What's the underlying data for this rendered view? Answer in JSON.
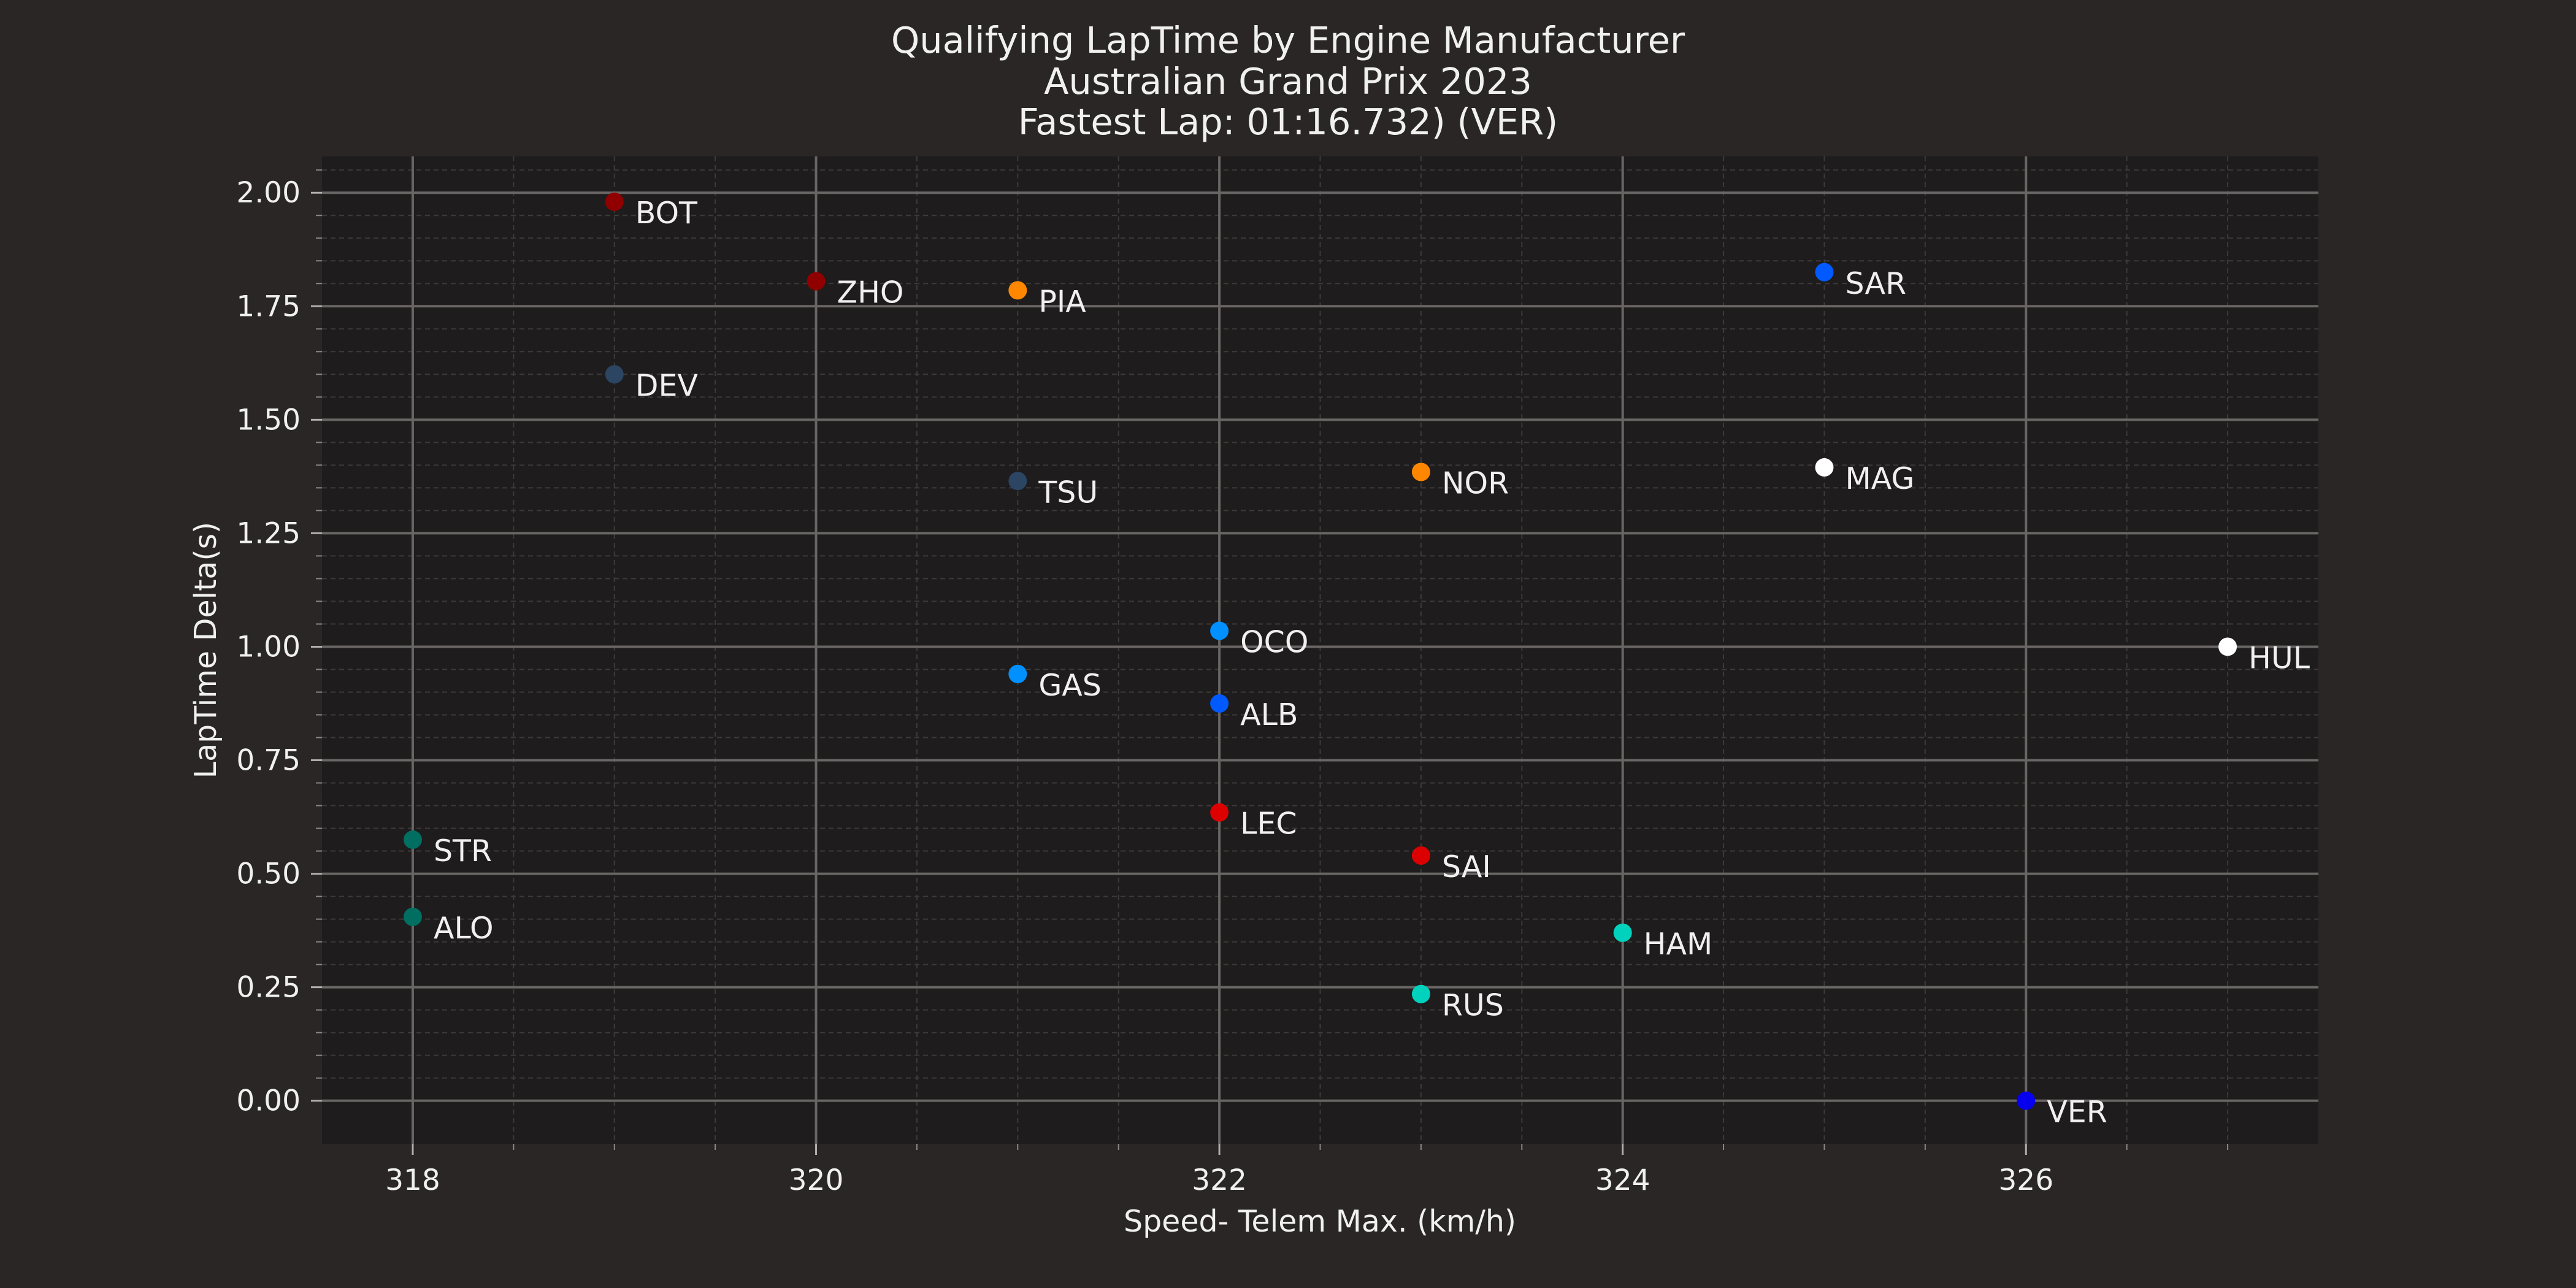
{
  "chart_data": {
    "type": "scatter",
    "title": [
      "Qualifying LapTime by Engine Manufacturer",
      "Australian Grand Prix 2023",
      "Fastest Lap: 01:16.732) (VER)"
    ],
    "xlabel": "Speed- Telem Max. (km/h)",
    "ylabel": "LapTime Delta(s)",
    "xlim": [
      317.55,
      327.45
    ],
    "ylim": [
      -0.095,
      2.08
    ],
    "xticks": [
      318,
      320,
      322,
      324,
      326
    ],
    "xtick_labels": [
      "318",
      "320",
      "322",
      "324",
      "326"
    ],
    "yticks": [
      0.0,
      0.25,
      0.5,
      0.75,
      1.0,
      1.25,
      1.5,
      1.75,
      2.0
    ],
    "ytick_labels": [
      "0.00",
      "0.25",
      "0.50",
      "0.75",
      "1.00",
      "1.25",
      "1.50",
      "1.75",
      "2.00"
    ],
    "grid": true,
    "points": [
      {
        "label": "BOT",
        "x": 319,
        "y": 1.98,
        "color": "#900000"
      },
      {
        "label": "ZHO",
        "x": 320,
        "y": 1.805,
        "color": "#900000"
      },
      {
        "label": "PIA",
        "x": 321,
        "y": 1.785,
        "color": "#ff8700"
      },
      {
        "label": "SAR",
        "x": 325,
        "y": 1.825,
        "color": "#005aff"
      },
      {
        "label": "DEV",
        "x": 319,
        "y": 1.6,
        "color": "#2b4562"
      },
      {
        "label": "TSU",
        "x": 321,
        "y": 1.365,
        "color": "#2b4562"
      },
      {
        "label": "NOR",
        "x": 323,
        "y": 1.385,
        "color": "#ff8700"
      },
      {
        "label": "MAG",
        "x": 325,
        "y": 1.395,
        "color": "#ffffff"
      },
      {
        "label": "OCO",
        "x": 322,
        "y": 1.035,
        "color": "#0090ff"
      },
      {
        "label": "HUL",
        "x": 327,
        "y": 1.0,
        "color": "#ffffff"
      },
      {
        "label": "GAS",
        "x": 321,
        "y": 0.94,
        "color": "#0090ff"
      },
      {
        "label": "ALB",
        "x": 322,
        "y": 0.875,
        "color": "#005aff"
      },
      {
        "label": "LEC",
        "x": 322,
        "y": 0.635,
        "color": "#dc0000"
      },
      {
        "label": "SAI",
        "x": 323,
        "y": 0.54,
        "color": "#dc0000"
      },
      {
        "label": "STR",
        "x": 318,
        "y": 0.575,
        "color": "#006f62"
      },
      {
        "label": "ALO",
        "x": 318,
        "y": 0.405,
        "color": "#006f62"
      },
      {
        "label": "HAM",
        "x": 324,
        "y": 0.37,
        "color": "#00d2be"
      },
      {
        "label": "RUS",
        "x": 323,
        "y": 0.235,
        "color": "#00d2be"
      },
      {
        "label": "VER",
        "x": 326,
        "y": 0.0,
        "color": "#0600ef"
      }
    ]
  }
}
